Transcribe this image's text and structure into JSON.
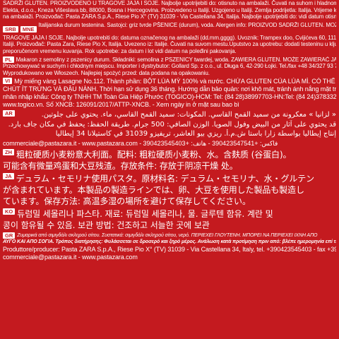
{
  "top": {
    "l1": "SADRŽI GLUTEN. PROIZVODENO U TRAGOVE JAJA I SOJE. Najbolje upotrijebiti do: otisnuto na ambalaži. Čuvati na suhom i hladnom mjestu. Uvoznik za BiH:",
    "l2": "Elekta, d.o.o., Kneza Višeslava bb, 88000, Bosna i Hercegovina. Proizvedeno u Italiji. Uzgojeno u Italiji. Zemlja podrijetla: Italija. Vrijeme kuhanja: otisnuto",
    "l3": "na ambalaži. Proizvođač: Pasta ZARA S.p.A., Riese Pio X° (TV) 31039 - Via Castellana 34, Italija. Najbolje upotrijebiti do: vidi datum otisnut na ambalaži."
  },
  "srb": {
    "tag1": "SRB",
    "tag2": "MNE",
    "l1": "Italijanska durum testenina. Sastojci: griz tvrde PŠENICE (durum), voda. Alergen info: PROIZVOD SADRŽI GLUTEN. MOŽE SADRŽATI",
    "l2": "TRAGOVE JAJA I SOJE. Najbolje upotrebiti do: datuma označenog na ambalaži (dd.mm.gggg). Uvoznik: Trampex doo, Cvijićeva 60, 11120 Beograd. Proizvedeno u",
    "l3": "Italiji. Proizvođač: Pasta Zara, Riese Pio X, Italija. Uvezeno iz: Italije. Čuvati na suvom mestu.Uputstvo za upotrebu: dodati testeninu u ključalu vodu i kuvati prema",
    "l4": "preporučenom vremenu kuvanja. Rok upotrebe: za datum i lot vidi datum na poleđini pakovanja."
  },
  "pl": {
    "tag": "PL",
    "l1": "Makaron z semoliny z pszenicy durum. Składniki: semolina z PSZENICY twardej, woda. ZAWIERA GLUTEN. MOŻE ZAWIERAĆ JAJA I SOJĘ.",
    "l2": "Przechowywać w suchym i chłodnym miejscu. Importer i dystrybutor: Gollard Sp. z o.o., ul. Długa 6, 42-290 Łojki. Tel./fax +48 34/327 93 79.",
    "l3": "Wyprodukowano we Włoszech. Najlepiej spożyć przed: data podana na opakowaniu."
  },
  "vi": {
    "tag": "VI",
    "l1": "Mỳ miếng vàng Lasagne No.112. Thành phần: BỘT LÚA MỲ 100% và nước. CHỨA GLUTEN CỦA LÚA MÌ. CÓ THỂ CÓ",
    "l2": "CHÚT ÍT TRỨNG VÀ ĐẬU NÀNH. Thời hạn sử dụng 36 tháng. Hướng dẫn bảo quản: nơi khô mát, tránh ánh nắng mặt trời. Thương",
    "l3": "nhân nhập khẩu: Công ty TNHH TM Toàn Gia Hiệp Phước (TOGICO)-HCM: Tel: (84 28)38997703-HN:Tel: (84 24)37833253.",
    "l4": "www.togico.vn. Số XNCB: 126091/2017/ATTP-XNCB. - Xem ngày in ở mặt sau bao bì"
  },
  "ar": {
    "tag": "AR",
    "l1": "« لزانيا » معكرونة من سميد القمح القاسي. المكونات: سميد القمح القاسي، ماء. يحتوي على جلوتين.",
    "l2": "قد يحتوي على آثار من البيض وفول الصويا. الوزن الصافي: 500 جرام. طريقة الحفظ: يحفظ في مكان جاف بارد.",
    "l3": "إنتاج إيطاليا بواسطة زارا باستا ش.م.أ. ريزي بيو العاشر، تريفيزو 31039 في كاستيلانا 34 إيطاليا",
    "l4": "commerciale@pastazara.it - www.pastazara.com - فاكس: +390423547541 - هاتف: +390423545403"
  },
  "zh": {
    "tag": "ZH",
    "l1": "粗粒硬质小麦粉意大利面。配料: 粗粒硬质小麦粉、水。含麸质 (谷蛋白)。",
    "l2": "可能含有微量鸡蛋和大豆残渣。存放条件: 存放于阴凉干燥 处。"
  },
  "ja": {
    "tag": "JA",
    "l1": "デュラム・セモリナ使用パスタ。原材料名: デュラム・セモリナ、水・グルテン",
    "l2": "が含まれています。本製品の製造ラインでは、卵、大豆を使用した製品も製造し",
    "l3": "ています。保存方法: 高温多湿の場所を避けて保存してください。"
  },
  "ko": {
    "tag": "KO",
    "l1": "듀럼밀 세몰리나 파스타. 재료: 듀럼밀 세몰리나, 물. 글루텐 함유. 계란 및",
    "l2": "콩이 함유될 수 있음. 보관 방법: 건조하고 서늘한 곳에 보관"
  },
  "gr": {
    "tag": "GR",
    "l1": "Ζυμαρικά από σιμιγδάλι σκληρού σίτου. Συστατικά: σιμιγδάλι σκληρού σίτου, νερό. ΠΕΡΙΕΧΕΙ ΓΛΟΥΤΕΝΗ. ΜΠΟΡΕΙ ΝΑ ΠΕΡΙΕΧΕΙ ΙΧΝΗ ΑΠΟ",
    "l2": "ΑΥΓΟ ΚΑΙ ΑΠΟ ΣΟΓΙΑ. Τρόπος διατήρησης: Φυλάσσεται σε δροσερό και ξηρό μέρος. Ανάλωση κατά προτίμηση πριν από: βλέπε ημερομηνία επί της συσκευασίας."
  },
  "footer": {
    "l1": "Produttore/producer: Pasta ZARA S.p.A., Riese Pio X° (TV) 31039 - Via Castellana 34, Italy, tel. +390423545403 - fax +390423547541",
    "l2": "commerciale@pastazara.it - www.pastazara.com"
  },
  "colors": {
    "background": "#c41a1f",
    "text": "#ffffff"
  }
}
